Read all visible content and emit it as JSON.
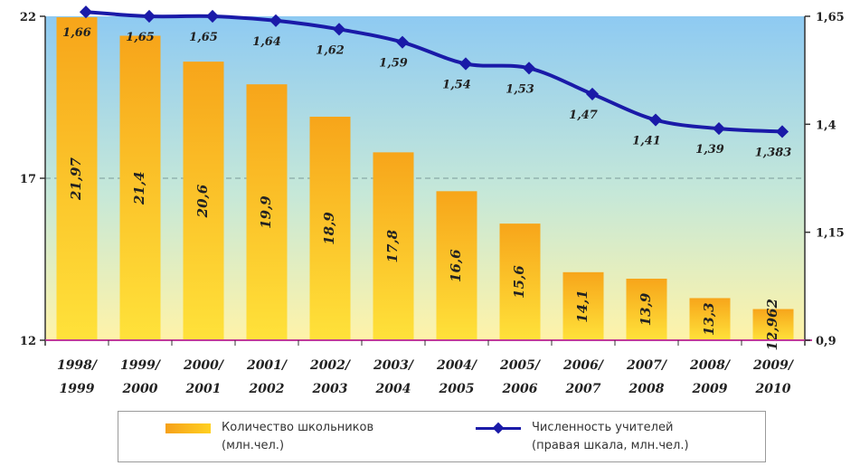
{
  "chart_data": {
    "type": "bar+line",
    "categories": [
      [
        "1998/",
        "1999"
      ],
      [
        "1999/",
        "2000"
      ],
      [
        "2000/",
        "2001"
      ],
      [
        "2001/",
        "2002"
      ],
      [
        "2002/",
        "2003"
      ],
      [
        "2003/",
        "2004"
      ],
      [
        "2004/",
        "2005"
      ],
      [
        "2005/",
        "2006"
      ],
      [
        "2006/",
        "2007"
      ],
      [
        "2007/",
        "2008"
      ],
      [
        "2008/",
        "2009"
      ],
      [
        "2009/",
        "2010"
      ]
    ],
    "bars": {
      "name": [
        "Количество школьников",
        "(млн.чел.)"
      ],
      "axis": "left",
      "values": [
        21.97,
        21.4,
        20.6,
        19.9,
        18.9,
        17.8,
        16.6,
        15.6,
        14.1,
        13.9,
        13.3,
        12.962
      ],
      "labels": [
        "21,97",
        "21,4",
        "20,6",
        "19,9",
        "18,9",
        "17,8",
        "16,6",
        "15,6",
        "14,1",
        "13,9",
        "13,3",
        "12,962"
      ],
      "color": "#f7a51a"
    },
    "line": {
      "name": [
        "Численность учителей",
        "(правая шкала, млн.чел.)"
      ],
      "axis": "right",
      "values": [
        1.66,
        1.65,
        1.65,
        1.64,
        1.62,
        1.59,
        1.54,
        1.53,
        1.47,
        1.41,
        1.39,
        1.383
      ],
      "labels": [
        "1,66",
        "1,65",
        "1,65",
        "1,64",
        "1,62",
        "1,59",
        "1,54",
        "1,53",
        "1,47",
        "1,41",
        "1,39",
        "1,383"
      ],
      "color": "#1a1aa8"
    },
    "left_axis": {
      "ylim": [
        12,
        22
      ],
      "ticks": [
        12,
        17,
        22
      ],
      "tick_labels": [
        "12",
        "17",
        "22"
      ]
    },
    "right_axis": {
      "ylim": [
        0.9,
        1.65
      ],
      "ticks": [
        0.9,
        1.15,
        1.4,
        1.65
      ],
      "tick_labels": [
        "0,9",
        "1,15",
        "1,4",
        "1,65"
      ]
    },
    "grid": "horizontal dashed at 17",
    "legend": "bottom",
    "background_gradient": [
      "#8ecaf2",
      "#fff3a8"
    ]
  }
}
